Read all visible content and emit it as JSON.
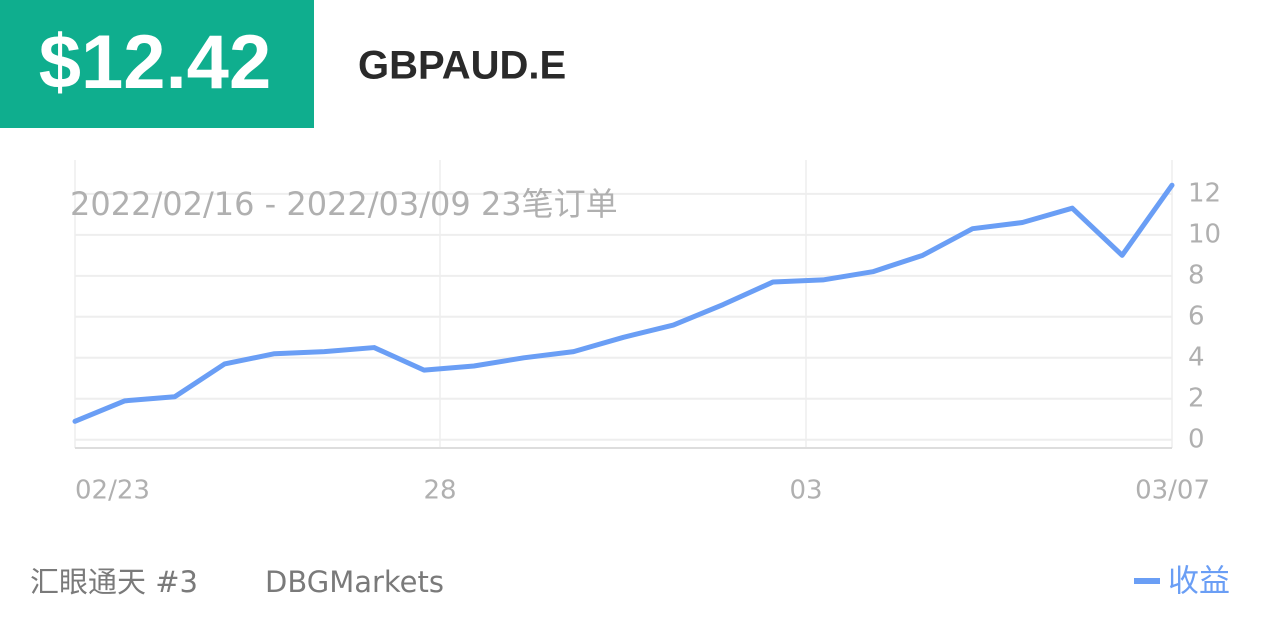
{
  "header": {
    "price": "$12.42",
    "symbol": "GBPAUD.E"
  },
  "chart_data": {
    "type": "line",
    "subtitle": "2022/02/16 - 2022/03/09  23笔订单",
    "x": [
      0,
      1,
      2,
      3,
      4,
      5,
      6,
      7,
      8,
      9,
      10,
      11,
      12,
      13,
      14,
      15,
      16,
      17,
      18,
      19,
      20,
      21,
      22
    ],
    "series": [
      {
        "name": "收益",
        "color": "#6a9ef5",
        "values": [
          0.9,
          1.9,
          2.1,
          3.7,
          4.2,
          4.3,
          4.5,
          3.4,
          3.6,
          4.0,
          4.3,
          5.0,
          5.6,
          6.6,
          7.7,
          7.8,
          8.2,
          9.0,
          10.3,
          10.6,
          11.3,
          9.0,
          12.42
        ]
      }
    ],
    "xlim": [
      0,
      22
    ],
    "xticks": [
      {
        "value": 0,
        "label": "02/23"
      },
      {
        "value": 7.32,
        "label": "28"
      },
      {
        "value": 14.66,
        "label": "03"
      },
      {
        "value": 22,
        "label": "03/07"
      }
    ],
    "ylim": [
      -0.4,
      13.65
    ],
    "yticks": [
      0,
      2,
      4,
      6,
      8,
      10,
      12
    ],
    "grid": true,
    "legend": "bottom-right"
  },
  "footer": {
    "name": "汇眼通天 #3",
    "broker": "DBGMarkets"
  }
}
